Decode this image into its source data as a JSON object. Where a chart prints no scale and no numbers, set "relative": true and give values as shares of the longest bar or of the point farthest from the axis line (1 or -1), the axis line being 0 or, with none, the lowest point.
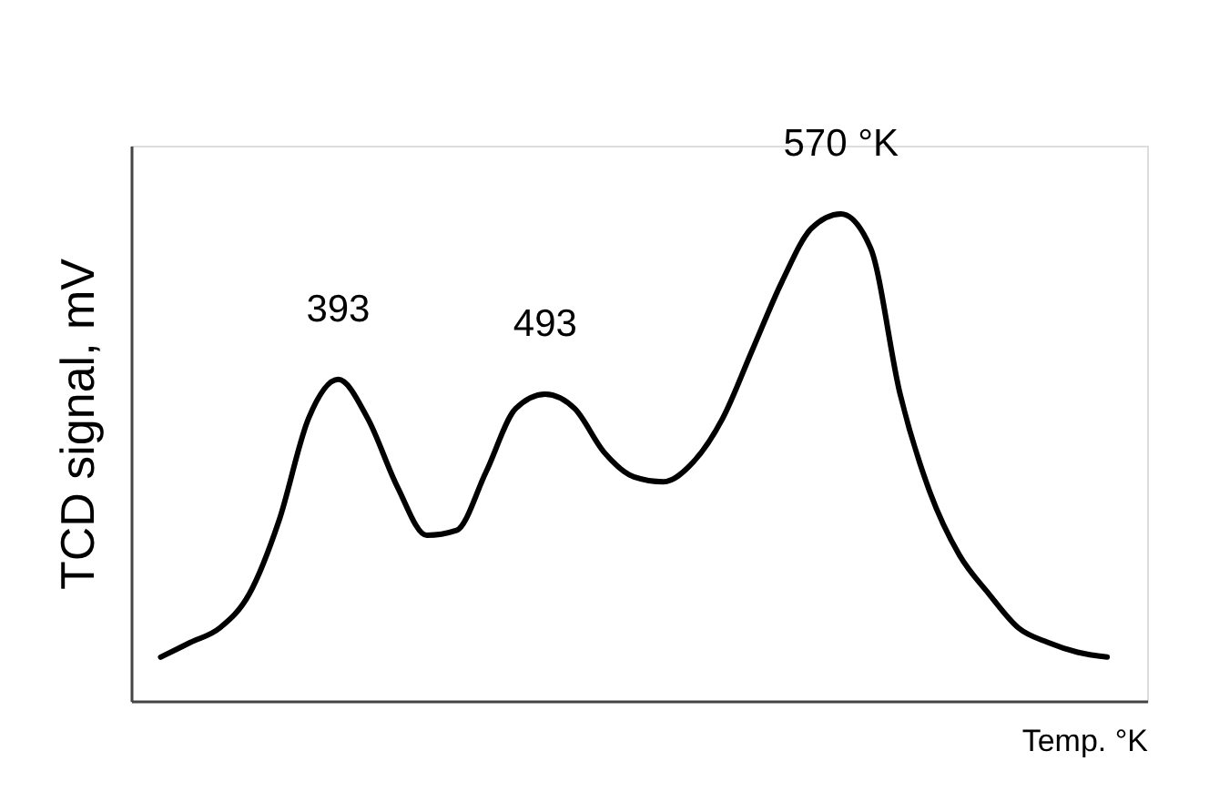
{
  "chart_data": {
    "type": "line",
    "relative": true,
    "xlabel": "Temp. °K",
    "ylabel": "TCD signal, mV",
    "categories": [
      null,
      null,
      null,
      null,
      null,
      null,
      null,
      null,
      null,
      null,
      null,
      null,
      null,
      null,
      null,
      null,
      null,
      null,
      null,
      null,
      null,
      null,
      null,
      null,
      null,
      null,
      null,
      null,
      null,
      null,
      null,
      null,
      null
    ],
    "series": [
      {
        "color": "#000000",
        "values": [
          0.09,
          0.12,
          0.15,
          0.22,
          0.37,
          0.58,
          0.66,
          0.58,
          0.44,
          0.34,
          0.35,
          0.47,
          0.6,
          0.63,
          0.6,
          0.51,
          0.46,
          0.45,
          0.49,
          0.58,
          0.72,
          0.86,
          0.97,
          1.0,
          0.93,
          0.63,
          0.43,
          0.3,
          0.22,
          0.15,
          0.12,
          0.1,
          0.09
        ]
      }
    ],
    "annotations": [
      "393",
      "493",
      "570 °K"
    ],
    "tick_labels": false,
    "grid": false,
    "legend": false,
    "marker": "none",
    "line_style": "solid"
  }
}
